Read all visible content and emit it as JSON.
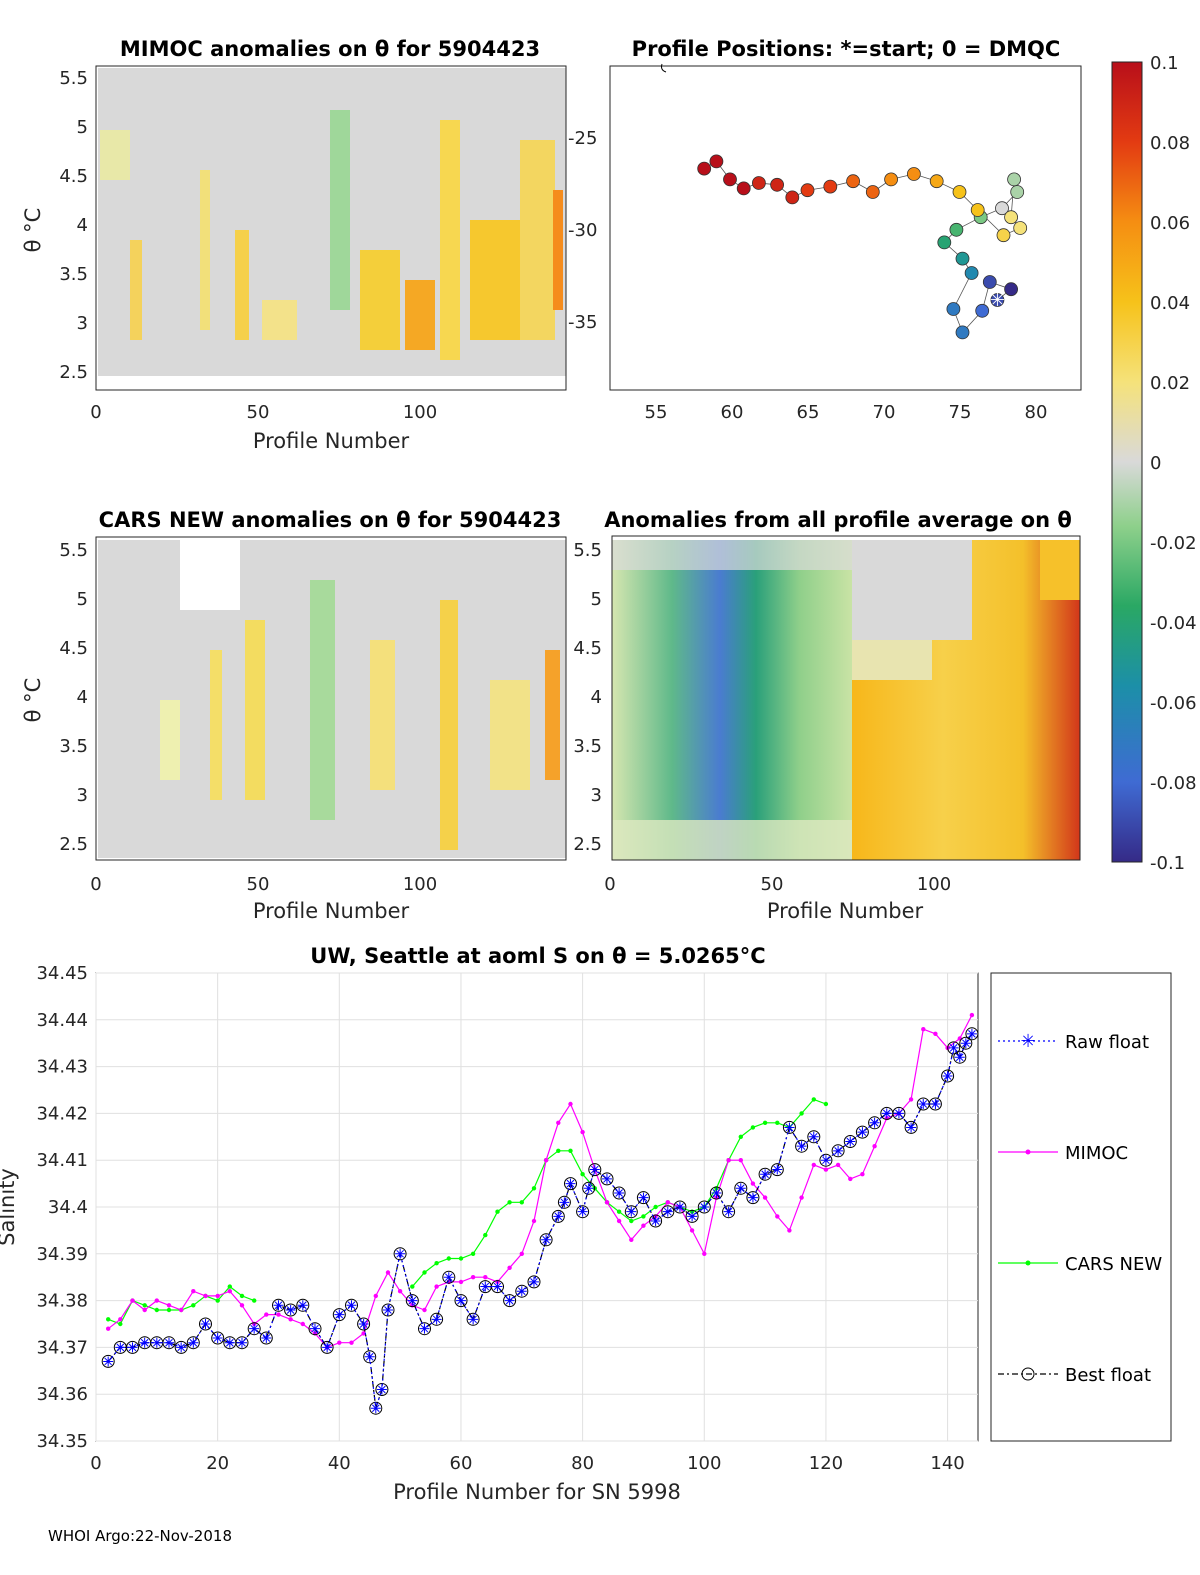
{
  "footer": "WHOI Argo:22-Nov-2018",
  "panels": {
    "mimoc": {
      "title": "MIMOC anomalies on θ  for 5904423",
      "xlabel": "Profile Number",
      "ylabel": "θ °C",
      "xticks": [
        "0",
        "50",
        "100"
      ],
      "yticks": [
        "5.5",
        "5",
        "4.5",
        "4",
        "3.5",
        "3",
        "2.5"
      ]
    },
    "positions": {
      "title": "Profile Positions: *=start; 0 = DMQC",
      "xticks": [
        "55",
        "60",
        "65",
        "70",
        "75",
        "80"
      ],
      "yticks": [
        "-25",
        "-30",
        "-35"
      ]
    },
    "cars": {
      "title": "CARS NEW anomalies on θ for 5904423",
      "xlabel": "Profile Number",
      "ylabel": "θ °C",
      "xticks": [
        "0",
        "50",
        "100"
      ],
      "yticks": [
        "5.5",
        "5",
        "4.5",
        "4",
        "3.5",
        "3",
        "2.5"
      ]
    },
    "allavg": {
      "title": "Anomalies from all profile average on θ",
      "xlabel": "Profile Number",
      "xticks": [
        "0",
        "50",
        "100"
      ],
      "yticks": [
        "5.5",
        "5",
        "4.5",
        "4",
        "3.5",
        "3",
        "2.5"
      ]
    },
    "colorbar": {
      "ticks": [
        "0.1",
        "0.08",
        "0.06",
        "0.04",
        "0.02",
        "0",
        "-0.02",
        "-0.04",
        "-0.06",
        "-0.08",
        "-0.1"
      ]
    }
  },
  "chart_data": [
    {
      "type": "heatmap",
      "title": "MIMOC anomalies on θ  for 5904423",
      "xlabel": "Profile Number",
      "ylabel": "θ °C",
      "xlim": [
        0,
        145
      ],
      "ylim": [
        2.3,
        5.6
      ],
      "clim": [
        -0.1,
        0.1
      ],
      "notes": "Salinity anomaly field vs. profile number and potential temperature; mostly near zero (grey) with positive (yellow/orange) streaks near profiles 40-70 and 90-145 and weak negative (green) near 70-80."
    },
    {
      "type": "scatter",
      "title": "Profile Positions: *=start; 0 = DMQC",
      "xlim": [
        52,
        83
      ],
      "ylim": [
        -39,
        -21
      ],
      "color_metric": "profile position colored by anomaly scale",
      "track": [
        {
          "lon": 77.5,
          "lat": -34.0,
          "c": -0.09
        },
        {
          "lon": 78.4,
          "lat": -33.4,
          "c": -0.1
        },
        {
          "lon": 77.0,
          "lat": -33.0,
          "c": -0.09
        },
        {
          "lon": 76.5,
          "lat": -34.6,
          "c": -0.08
        },
        {
          "lon": 75.2,
          "lat": -35.8,
          "c": -0.07
        },
        {
          "lon": 74.6,
          "lat": -34.5,
          "c": -0.07
        },
        {
          "lon": 75.8,
          "lat": -32.5,
          "c": -0.06
        },
        {
          "lon": 75.2,
          "lat": -31.7,
          "c": -0.05
        },
        {
          "lon": 74.0,
          "lat": -30.8,
          "c": -0.04
        },
        {
          "lon": 74.8,
          "lat": -30.1,
          "c": -0.03
        },
        {
          "lon": 76.4,
          "lat": -29.4,
          "c": -0.02
        },
        {
          "lon": 77.8,
          "lat": -28.9,
          "c": 0.0
        },
        {
          "lon": 78.8,
          "lat": -28.0,
          "c": -0.01
        },
        {
          "lon": 78.6,
          "lat": -27.3,
          "c": -0.01
        },
        {
          "lon": 78.4,
          "lat": -29.4,
          "c": 0.02
        },
        {
          "lon": 79.0,
          "lat": -30.0,
          "c": 0.02
        },
        {
          "lon": 77.9,
          "lat": -30.4,
          "c": 0.03
        },
        {
          "lon": 76.2,
          "lat": -29.0,
          "c": 0.04
        },
        {
          "lon": 75.0,
          "lat": -28.0,
          "c": 0.04
        },
        {
          "lon": 73.5,
          "lat": -27.4,
          "c": 0.05
        },
        {
          "lon": 72.0,
          "lat": -27.0,
          "c": 0.06
        },
        {
          "lon": 70.5,
          "lat": -27.3,
          "c": 0.06
        },
        {
          "lon": 69.3,
          "lat": -28.0,
          "c": 0.07
        },
        {
          "lon": 68.0,
          "lat": -27.4,
          "c": 0.07
        },
        {
          "lon": 66.5,
          "lat": -27.7,
          "c": 0.08
        },
        {
          "lon": 65.0,
          "lat": -27.9,
          "c": 0.08
        },
        {
          "lon": 64.0,
          "lat": -28.3,
          "c": 0.09
        },
        {
          "lon": 63.0,
          "lat": -27.6,
          "c": 0.09
        },
        {
          "lon": 61.8,
          "lat": -27.5,
          "c": 0.09
        },
        {
          "lon": 60.8,
          "lat": -27.8,
          "c": 0.1
        },
        {
          "lon": 59.9,
          "lat": -27.3,
          "c": 0.1
        },
        {
          "lon": 59.0,
          "lat": -26.3,
          "c": 0.1
        },
        {
          "lon": 58.2,
          "lat": -26.7,
          "c": 0.1
        }
      ]
    },
    {
      "type": "heatmap",
      "title": "CARS NEW anomalies on θ for 5904423",
      "xlabel": "Profile Number",
      "ylabel": "θ °C",
      "xlim": [
        0,
        145
      ],
      "ylim": [
        2.3,
        5.6
      ],
      "clim": [
        -0.1,
        0.1
      ],
      "notes": "Mostly near zero with scattered positive streaks (yellow) near 40-65, 90-145 and a negative (green) band near 70-80."
    },
    {
      "type": "heatmap",
      "title": "Anomalies from all profile average on θ",
      "xlabel": "Profile Number",
      "xlim": [
        0,
        145
      ],
      "ylim": [
        2.3,
        5.6
      ],
      "clim": [
        -0.1,
        0.1
      ],
      "notes": "Negative anomalies (green to blue, min about -0.08 near profiles 25-45, θ 3-4) for profiles 0-72; positive anomalies (yellow to red, max about 0.1 near profile 143) for profiles 73-145."
    },
    {
      "type": "line",
      "title": "UW, Seattle at aoml S on θ = 5.0265°C",
      "xlabel": "Profile Number for SN 5998",
      "ylabel": "Salinity",
      "xlim": [
        0,
        145
      ],
      "ylim": [
        34.35,
        34.45
      ],
      "xticks": [
        "0",
        "20",
        "40",
        "60",
        "80",
        "100",
        "120",
        "140"
      ],
      "yticks": [
        "34.45",
        "34.44",
        "34.43",
        "34.42",
        "34.41",
        "34.4",
        "34.39",
        "34.38",
        "34.37",
        "34.36",
        "34.35"
      ],
      "grid": true,
      "legend_position": "right",
      "series": [
        {
          "name": "Raw float",
          "color": "#0000ff",
          "marker": "asterisk",
          "style": "dotted",
          "x": [
            2,
            4,
            6,
            8,
            10,
            12,
            14,
            16,
            18,
            20,
            22,
            24,
            26,
            28,
            30,
            32,
            34,
            36,
            38,
            40,
            42,
            44,
            45,
            46,
            47,
            48,
            50,
            52,
            54,
            56,
            58,
            60,
            62,
            64,
            66,
            68,
            70,
            72,
            74,
            76,
            77,
            78,
            80,
            81,
            82,
            84,
            86,
            88,
            90,
            92,
            94,
            96,
            98,
            100,
            102,
            104,
            106,
            108,
            110,
            112,
            114,
            116,
            118,
            120,
            122,
            124,
            126,
            128,
            130,
            132,
            134,
            136,
            138,
            140,
            141,
            142,
            143,
            144
          ],
          "y": [
            34.367,
            34.37,
            34.37,
            34.371,
            34.371,
            34.371,
            34.37,
            34.371,
            34.375,
            34.372,
            34.371,
            34.371,
            34.374,
            34.372,
            34.379,
            34.378,
            34.379,
            34.374,
            34.37,
            34.377,
            34.379,
            34.375,
            34.368,
            34.357,
            34.361,
            34.378,
            34.39,
            34.38,
            34.374,
            34.376,
            34.385,
            34.38,
            34.376,
            34.383,
            34.383,
            34.38,
            34.382,
            34.384,
            34.393,
            34.398,
            34.401,
            34.405,
            34.399,
            34.404,
            34.408,
            34.406,
            34.403,
            34.399,
            34.402,
            34.397,
            34.399,
            34.4,
            34.398,
            34.4,
            34.403,
            34.399,
            34.404,
            34.402,
            34.407,
            34.408,
            34.417,
            34.413,
            34.415,
            34.41,
            34.412,
            34.414,
            34.416,
            34.418,
            34.42,
            34.42,
            34.417,
            34.422,
            34.422,
            34.428,
            34.434,
            34.432,
            34.435,
            34.437
          ]
        },
        {
          "name": "MIMOC",
          "color": "#ff00ff",
          "marker": "dot",
          "style": "solid",
          "x": [
            2,
            4,
            6,
            8,
            10,
            12,
            14,
            16,
            18,
            20,
            22,
            24,
            26,
            28,
            30,
            32,
            34,
            36,
            38,
            40,
            42,
            44,
            46,
            48,
            50,
            52,
            54,
            56,
            58,
            60,
            62,
            64,
            66,
            68,
            70,
            72,
            74,
            76,
            78,
            80,
            82,
            84,
            86,
            88,
            90,
            92,
            94,
            96,
            98,
            100,
            102,
            104,
            106,
            108,
            110,
            112,
            114,
            116,
            118,
            120,
            122,
            124,
            126,
            128,
            130,
            132,
            134,
            136,
            138,
            140,
            142,
            144
          ],
          "y": [
            34.374,
            34.376,
            34.38,
            34.378,
            34.38,
            34.379,
            34.378,
            34.382,
            34.381,
            34.381,
            34.382,
            34.379,
            34.375,
            34.377,
            34.377,
            34.376,
            34.375,
            34.373,
            34.37,
            34.371,
            34.371,
            34.373,
            34.381,
            34.386,
            34.382,
            34.379,
            34.378,
            34.383,
            34.384,
            34.384,
            34.385,
            34.385,
            34.384,
            34.387,
            34.39,
            34.397,
            34.41,
            34.418,
            34.422,
            34.416,
            34.408,
            34.401,
            34.397,
            34.393,
            34.396,
            34.398,
            34.401,
            34.4,
            34.395,
            34.39,
            34.402,
            34.41,
            34.41,
            34.405,
            34.402,
            34.398,
            34.395,
            34.402,
            34.409,
            34.408,
            34.409,
            34.406,
            34.407,
            34.413,
            34.419,
            34.42,
            34.423,
            34.438,
            34.437,
            34.434,
            34.436,
            34.441
          ]
        },
        {
          "name": "CARS NEW",
          "color": "#00ff00",
          "marker": "dot",
          "style": "solid",
          "x": [
            2,
            4,
            6,
            8,
            10,
            12,
            14,
            16,
            18,
            20,
            22,
            24,
            26,
            28,
            30,
            32,
            34,
            36,
            38,
            40,
            42,
            44,
            46,
            48,
            50,
            52,
            54,
            56,
            58,
            60,
            62,
            64,
            66,
            68,
            70,
            72,
            74,
            76,
            78,
            80,
            82,
            84,
            86,
            88,
            90,
            92,
            94,
            96,
            98,
            100,
            102,
            104,
            106,
            108,
            110,
            112,
            114,
            116,
            118,
            120
          ],
          "y": [
            34.376,
            34.375,
            34.38,
            34.379,
            34.378,
            34.378,
            34.378,
            34.379,
            34.381,
            34.38,
            34.383,
            34.381,
            34.38,
            null,
            null,
            null,
            null,
            null,
            null,
            null,
            null,
            null,
            null,
            null,
            null,
            34.383,
            34.386,
            34.388,
            34.389,
            34.389,
            34.39,
            34.394,
            34.399,
            34.401,
            34.401,
            34.404,
            34.41,
            34.412,
            34.412,
            34.407,
            34.404,
            34.401,
            34.399,
            34.397,
            34.398,
            34.4,
            34.401,
            34.4,
            34.399,
            34.4,
            34.404,
            34.41,
            34.415,
            34.417,
            34.418,
            34.418,
            34.417,
            34.42,
            34.423,
            34.422
          ]
        },
        {
          "name": "Best float",
          "color": "#000000",
          "marker": "circle",
          "style": "dashdot",
          "x": [
            2,
            4,
            6,
            8,
            10,
            12,
            14,
            16,
            18,
            20,
            22,
            24,
            26,
            28,
            30,
            32,
            34,
            36,
            38,
            40,
            42,
            44,
            45,
            46,
            47,
            48,
            50,
            52,
            54,
            56,
            58,
            60,
            62,
            64,
            66,
            68,
            70,
            72,
            74,
            76,
            77,
            78,
            80,
            81,
            82,
            84,
            86,
            88,
            90,
            92,
            94,
            96,
            98,
            100,
            102,
            104,
            106,
            108,
            110,
            112,
            114,
            116,
            118,
            120,
            122,
            124,
            126,
            128,
            130,
            132,
            134,
            136,
            138,
            140,
            141,
            142,
            143,
            144
          ],
          "y": [
            34.367,
            34.37,
            34.37,
            34.371,
            34.371,
            34.371,
            34.37,
            34.371,
            34.375,
            34.372,
            34.371,
            34.371,
            34.374,
            34.372,
            34.379,
            34.378,
            34.379,
            34.374,
            34.37,
            34.377,
            34.379,
            34.375,
            34.368,
            34.357,
            34.361,
            34.378,
            34.39,
            34.38,
            34.374,
            34.376,
            34.385,
            34.38,
            34.376,
            34.383,
            34.383,
            34.38,
            34.382,
            34.384,
            34.393,
            34.398,
            34.401,
            34.405,
            34.399,
            34.404,
            34.408,
            34.406,
            34.403,
            34.399,
            34.402,
            34.397,
            34.399,
            34.4,
            34.398,
            34.4,
            34.403,
            34.399,
            34.404,
            34.402,
            34.407,
            34.408,
            34.417,
            34.413,
            34.415,
            34.41,
            34.412,
            34.414,
            34.416,
            34.418,
            34.42,
            34.42,
            34.417,
            34.422,
            34.422,
            34.428,
            34.434,
            34.432,
            34.435,
            34.437
          ]
        }
      ]
    }
  ]
}
